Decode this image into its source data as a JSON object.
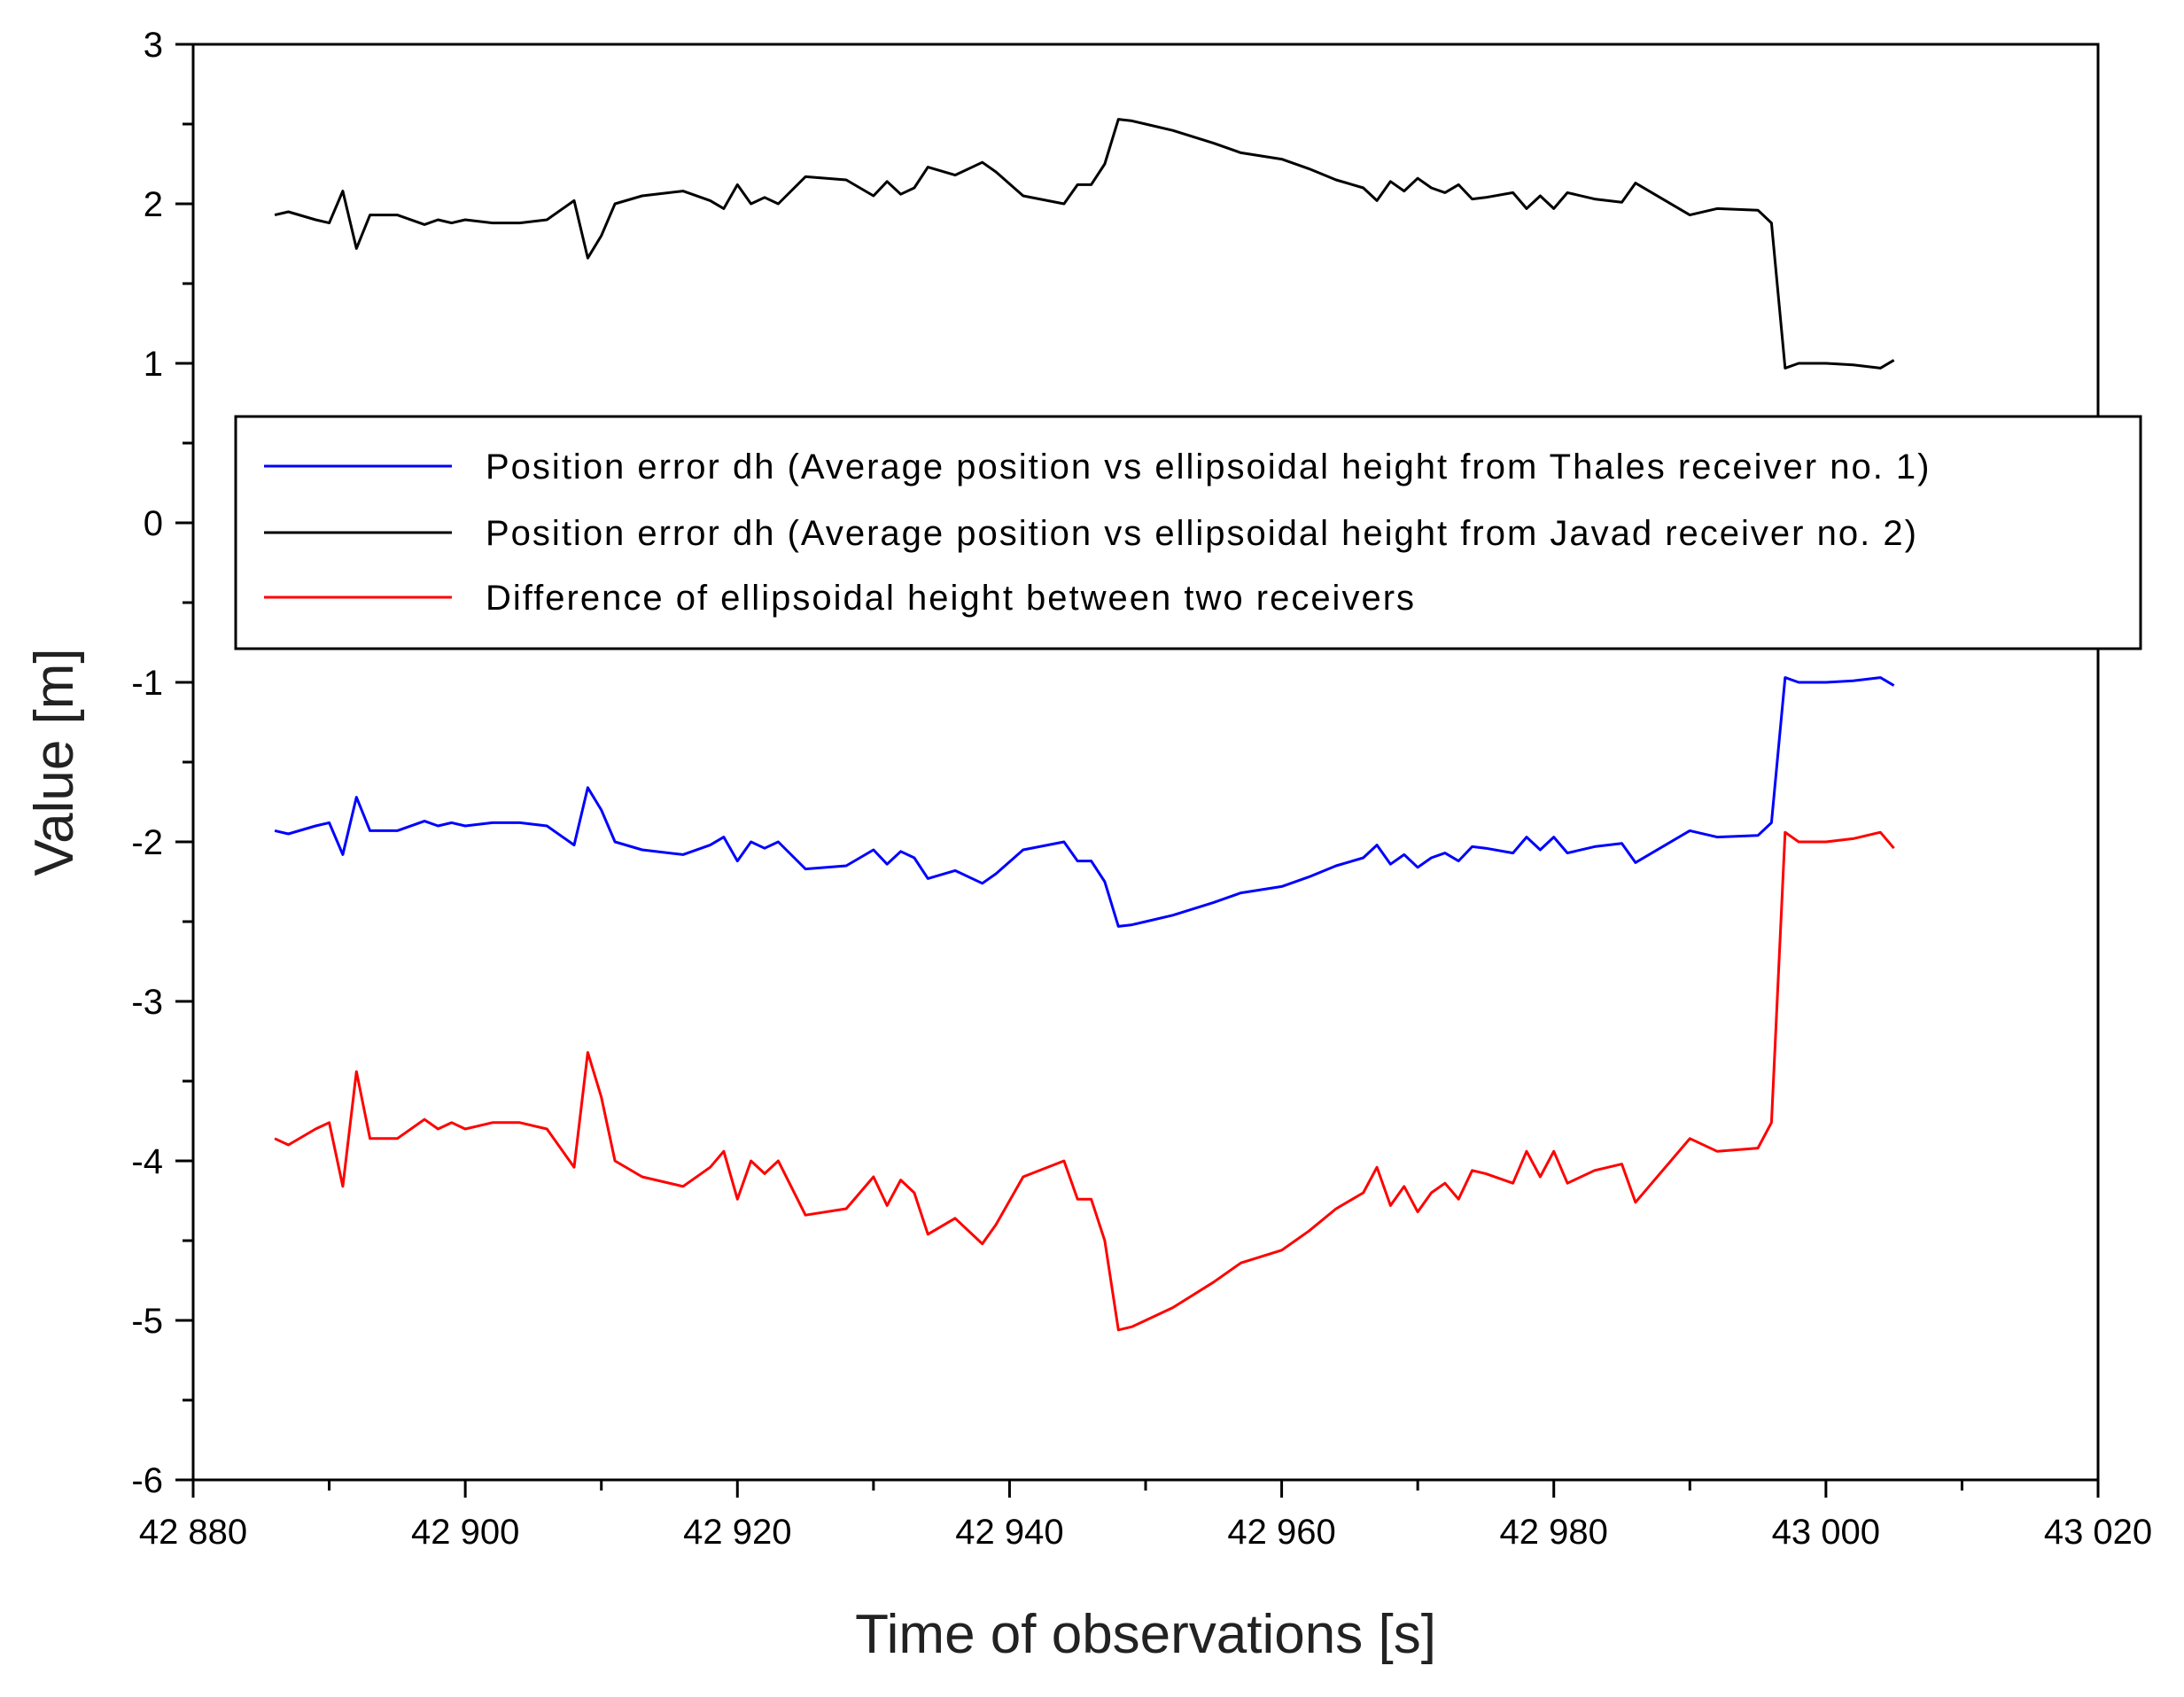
{
  "chart_data": {
    "type": "line",
    "title": "",
    "xlabel": "Time of observations [s]",
    "ylabel": "Value [m]",
    "xlim": [
      42880,
      43020
    ],
    "ylim": [
      -6,
      3
    ],
    "x_ticks": [
      42880,
      42900,
      42920,
      42940,
      42960,
      42980,
      43000,
      43020
    ],
    "x_tick_labels": [
      "42 880",
      "42 900",
      "42 920",
      "42 940",
      "42 960",
      "42 980",
      "43 000",
      "43 020"
    ],
    "y_ticks": [
      3,
      2,
      1,
      0,
      -1,
      -2,
      -3,
      -4,
      -5,
      -6
    ],
    "y_tick_labels": [
      "3",
      "2",
      "1",
      "0",
      "-1",
      "-2",
      "-3",
      "-4",
      "-5",
      "-6"
    ],
    "grid": false,
    "legend_position": "center",
    "series": [
      {
        "name": "Position error dh (Average position vs ellipsoidal height from Thales receiver no. 1)",
        "color": "#0000ff",
        "x": [
          42886,
          42887,
          42889,
          42890,
          42891,
          42892,
          42893,
          42895,
          42897,
          42898,
          42899,
          42900,
          42902,
          42904,
          42906,
          42908,
          42909,
          42910,
          42911,
          42913,
          42916,
          42918,
          42919,
          42920,
          42921,
          42922,
          42923,
          42925,
          42928,
          42930,
          42931,
          42932,
          42933,
          42934,
          42936,
          42938,
          42939,
          42941,
          42944,
          42945,
          42946,
          42947,
          42948,
          42949,
          42950,
          42952,
          42955,
          42957,
          42960,
          42962,
          42964,
          42966,
          42967,
          42968,
          42969,
          42970,
          42971,
          42972,
          42973,
          42974,
          42975,
          42977,
          42978,
          42979,
          42980,
          42981,
          42983,
          42985,
          42986,
          42987,
          42990,
          42992,
          42995,
          42996,
          42997,
          42998,
          43000,
          43002,
          43004,
          43005
        ],
        "y": [
          -1.93,
          -1.95,
          -1.9,
          -1.88,
          -2.08,
          -1.72,
          -1.93,
          -1.93,
          -1.87,
          -1.9,
          -1.88,
          -1.9,
          -1.88,
          -1.88,
          -1.9,
          -2.02,
          -1.66,
          -1.8,
          -2.0,
          -2.05,
          -2.08,
          -2.02,
          -1.97,
          -2.12,
          -2.0,
          -2.04,
          -2.0,
          -2.17,
          -2.15,
          -2.05,
          -2.14,
          -2.06,
          -2.1,
          -2.23,
          -2.18,
          -2.26,
          -2.2,
          -2.05,
          -2.0,
          -2.12,
          -2.12,
          -2.25,
          -2.53,
          -2.52,
          -2.5,
          -2.46,
          -2.38,
          -2.32,
          -2.28,
          -2.22,
          -2.15,
          -2.1,
          -2.02,
          -2.14,
          -2.08,
          -2.16,
          -2.1,
          -2.07,
          -2.12,
          -2.03,
          -2.04,
          -2.07,
          -1.97,
          -2.05,
          -1.97,
          -2.07,
          -2.03,
          -2.01,
          -2.13,
          -2.08,
          -1.93,
          -1.97,
          -1.96,
          -1.88,
          -0.97,
          -1.0,
          -1.0,
          -0.99,
          -0.97,
          -1.02
        ]
      },
      {
        "name": "Position error dh (Average position vs ellipsoidal height from Javad receiver no. 2)",
        "color": "#000000",
        "x": [
          42886,
          42887,
          42889,
          42890,
          42891,
          42892,
          42893,
          42895,
          42897,
          42898,
          42899,
          42900,
          42902,
          42904,
          42906,
          42908,
          42909,
          42910,
          42911,
          42913,
          42916,
          42918,
          42919,
          42920,
          42921,
          42922,
          42923,
          42925,
          42928,
          42930,
          42931,
          42932,
          42933,
          42934,
          42936,
          42938,
          42939,
          42941,
          42944,
          42945,
          42946,
          42947,
          42948,
          42949,
          42950,
          42952,
          42955,
          42957,
          42960,
          42962,
          42964,
          42966,
          42967,
          42968,
          42969,
          42970,
          42971,
          42972,
          42973,
          42974,
          42975,
          42977,
          42978,
          42979,
          42980,
          42981,
          42983,
          42985,
          42986,
          42987,
          42990,
          42992,
          42995,
          42996,
          42997,
          42998,
          43000,
          43002,
          43004,
          43005
        ],
        "y": [
          1.93,
          1.95,
          1.9,
          1.88,
          2.08,
          1.72,
          1.93,
          1.93,
          1.87,
          1.9,
          1.88,
          1.9,
          1.88,
          1.88,
          1.9,
          2.02,
          1.66,
          1.8,
          2.0,
          2.05,
          2.08,
          2.02,
          1.97,
          2.12,
          2.0,
          2.04,
          2.0,
          2.17,
          2.15,
          2.05,
          2.14,
          2.06,
          2.1,
          2.23,
          2.18,
          2.26,
          2.2,
          2.05,
          2.0,
          2.12,
          2.12,
          2.25,
          2.53,
          2.52,
          2.5,
          2.46,
          2.38,
          2.32,
          2.28,
          2.22,
          2.15,
          2.1,
          2.02,
          2.14,
          2.08,
          2.16,
          2.1,
          2.07,
          2.12,
          2.03,
          2.04,
          2.07,
          1.97,
          2.05,
          1.97,
          2.07,
          2.03,
          2.01,
          2.13,
          2.08,
          1.93,
          1.97,
          1.96,
          1.88,
          0.97,
          1.0,
          1.0,
          0.99,
          0.97,
          1.02
        ]
      },
      {
        "name": "Difference of ellipsoidal height between two receivers",
        "color": "#ff0000",
        "x": [
          42886,
          42887,
          42889,
          42890,
          42891,
          42892,
          42893,
          42895,
          42897,
          42898,
          42899,
          42900,
          42902,
          42904,
          42906,
          42908,
          42909,
          42910,
          42911,
          42913,
          42916,
          42918,
          42919,
          42920,
          42921,
          42922,
          42923,
          42925,
          42928,
          42930,
          42931,
          42932,
          42933,
          42934,
          42936,
          42938,
          42939,
          42941,
          42944,
          42945,
          42946,
          42947,
          42948,
          42949,
          42950,
          42952,
          42955,
          42957,
          42960,
          42962,
          42964,
          42966,
          42967,
          42968,
          42969,
          42970,
          42971,
          42972,
          42973,
          42974,
          42975,
          42977,
          42978,
          42979,
          42980,
          42981,
          42983,
          42985,
          42986,
          42987,
          42990,
          42992,
          42995,
          42996,
          42997,
          42998,
          43000,
          43002,
          43004,
          43005
        ],
        "y": [
          -3.86,
          -3.9,
          -3.8,
          -3.76,
          -4.16,
          -3.44,
          -3.86,
          -3.86,
          -3.74,
          -3.8,
          -3.76,
          -3.8,
          -3.76,
          -3.76,
          -3.8,
          -4.04,
          -3.32,
          -3.6,
          -4.0,
          -4.1,
          -4.16,
          -4.04,
          -3.94,
          -4.24,
          -4.0,
          -4.08,
          -4.0,
          -4.34,
          -4.3,
          -4.1,
          -4.28,
          -4.12,
          -4.2,
          -4.46,
          -4.36,
          -4.52,
          -4.4,
          -4.1,
          -4.0,
          -4.24,
          -4.24,
          -4.5,
          -5.06,
          -5.04,
          -5.0,
          -4.92,
          -4.76,
          -4.64,
          -4.56,
          -4.44,
          -4.3,
          -4.2,
          -4.04,
          -4.28,
          -4.16,
          -4.32,
          -4.2,
          -4.14,
          -4.24,
          -4.06,
          -4.08,
          -4.14,
          -3.94,
          -4.1,
          -3.94,
          -4.14,
          -4.06,
          -4.02,
          -4.26,
          -4.16,
          -3.86,
          -3.94,
          -3.92,
          -3.76,
          -1.94,
          -2.0,
          -2.0,
          -1.98,
          -1.94,
          -2.04
        ]
      }
    ]
  }
}
